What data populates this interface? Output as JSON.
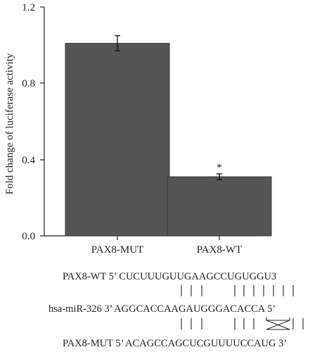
{
  "chart_data": {
    "type": "bar",
    "ylabel": "Fold change of luciferase activity",
    "ylim": [
      0,
      1.2
    ],
    "yticks": [
      "0.0",
      "0.4",
      "0.8",
      "1.2"
    ],
    "categories": [
      "PAX8-MUT",
      "PAX8-WT"
    ],
    "values": [
      1.01,
      0.31
    ],
    "errors": [
      0.04,
      0.015
    ],
    "annotations": [
      "",
      "*"
    ],
    "bar_color": "#555555",
    "grid": false
  },
  "sequences": {
    "wt": "PAX8-WT 5’ CUCUUUGUUGAAGCCUGUGGU3",
    "mir": "hsa-miR-326 3’ AGGCACCAAGAUGGGACACCA 5’",
    "mut": "PAX8-MUT 5’ ACAGCCAGCUCGUUUUCCAUG 3’",
    "pair_marks_top": "|  |  |     |  |  |  |  |  |  |  |",
    "pair_marks_bottom": "|  |  |     |  |  |  |  |  |  |  |"
  }
}
